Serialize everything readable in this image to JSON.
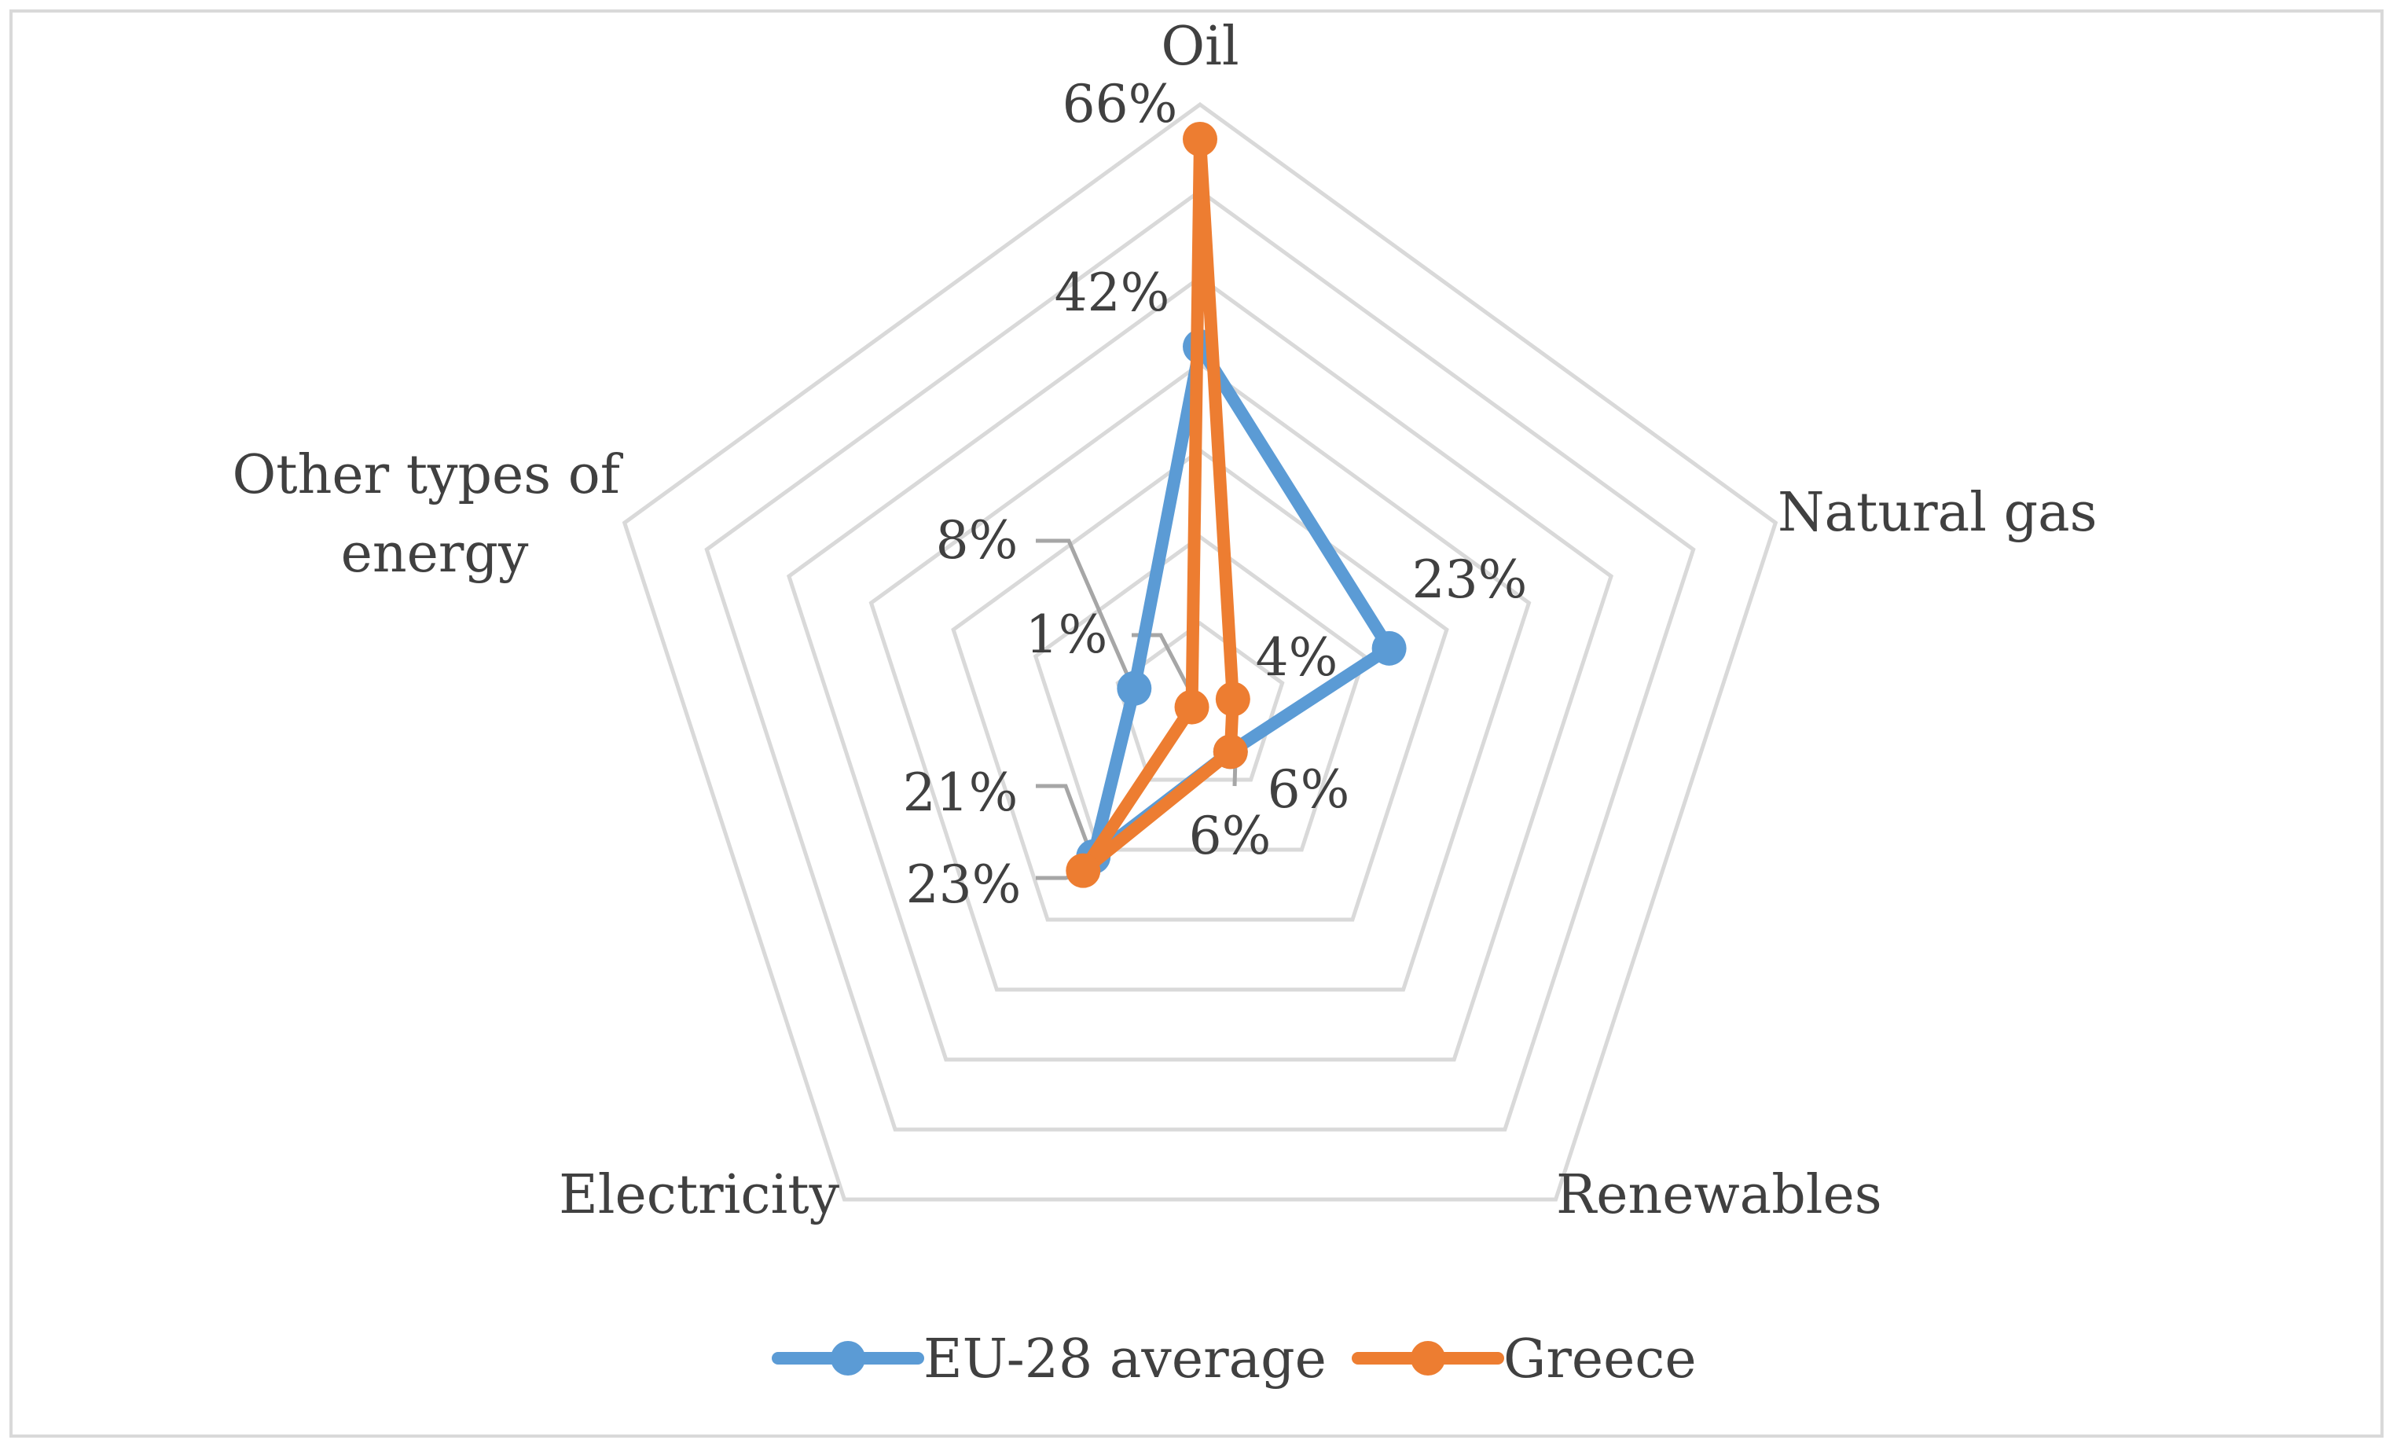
{
  "chart_data": {
    "type": "radar",
    "title": "",
    "categories": [
      "Oil",
      "Natural gas",
      "Renewables",
      "Electricity",
      "Other types of energy"
    ],
    "rmax": 70,
    "grid_step": 10,
    "series": [
      {
        "name": "EU-28 average",
        "color": "#5B9BD5",
        "values": [
          42,
          23,
          6,
          21,
          8
        ],
        "labels": [
          "42%",
          "23%",
          "6%",
          "21%",
          "8%"
        ]
      },
      {
        "name": "Greece",
        "color": "#ED7D31",
        "values": [
          66,
          4,
          6,
          23,
          1
        ],
        "labels": [
          "66%",
          "4%",
          "6%",
          "23%",
          "1%"
        ]
      }
    ],
    "legend": "bottom"
  },
  "colors": {
    "grid": "#D9D9D9",
    "frame": "#D9D9D9",
    "text": "#404040",
    "leader": "#A6A6A6"
  }
}
